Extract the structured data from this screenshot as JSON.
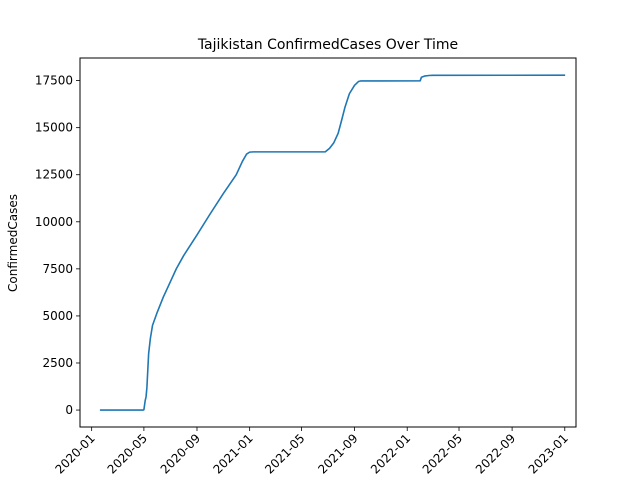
{
  "chart_data": {
    "type": "line",
    "title": "Tajikistan  ConfirmedCases Over Time",
    "xlabel": "",
    "ylabel": "ConfirmedCases",
    "x_tick_labels": [
      "2020-01",
      "2020-05",
      "2020-09",
      "2021-01",
      "2021-05",
      "2021-09",
      "2022-01",
      "2022-05",
      "2022-09",
      "2023-01"
    ],
    "y_ticks": [
      0,
      2500,
      5000,
      7500,
      10000,
      12500,
      15000,
      17500
    ],
    "y_tick_labels": [
      "0",
      "2500",
      "5000",
      "7500",
      "10000",
      "12500",
      "15000",
      "17500"
    ],
    "ylim": [
      -900,
      18700
    ],
    "xlim": [
      "2019-12-05",
      "2023-01-27"
    ],
    "grid": false,
    "line_color": "#1f77b4",
    "series": [
      {
        "points": [
          [
            "2020-01-22",
            0
          ],
          [
            "2020-04-29",
            0
          ],
          [
            "2020-05-01",
            15
          ],
          [
            "2020-05-04",
            500
          ],
          [
            "2020-05-06",
            700
          ],
          [
            "2020-05-08",
            1200
          ],
          [
            "2020-05-10",
            2100
          ],
          [
            "2020-05-12",
            3000
          ],
          [
            "2020-05-16",
            3800
          ],
          [
            "2020-05-21",
            4500
          ],
          [
            "2020-06-01",
            5200
          ],
          [
            "2020-06-15",
            6000
          ],
          [
            "2020-07-01",
            6800
          ],
          [
            "2020-07-15",
            7500
          ],
          [
            "2020-08-01",
            8200
          ],
          [
            "2020-08-15",
            8700
          ],
          [
            "2020-09-01",
            9300
          ],
          [
            "2020-10-01",
            10400
          ],
          [
            "2020-11-01",
            11500
          ],
          [
            "2020-12-01",
            12500
          ],
          [
            "2020-12-15",
            13200
          ],
          [
            "2020-12-25",
            13600
          ],
          [
            "2021-01-01",
            13700
          ],
          [
            "2021-01-10",
            13714
          ],
          [
            "2021-06-25",
            13714
          ],
          [
            "2021-07-05",
            13900
          ],
          [
            "2021-07-15",
            14200
          ],
          [
            "2021-07-25",
            14700
          ],
          [
            "2021-08-01",
            15300
          ],
          [
            "2021-08-10",
            16100
          ],
          [
            "2021-08-20",
            16800
          ],
          [
            "2021-09-01",
            17250
          ],
          [
            "2021-09-10",
            17450
          ],
          [
            "2021-09-15",
            17480
          ],
          [
            "2022-01-31",
            17488
          ],
          [
            "2022-02-03",
            17680
          ],
          [
            "2022-02-10",
            17740
          ],
          [
            "2022-02-20",
            17770
          ],
          [
            "2022-03-01",
            17780
          ],
          [
            "2022-12-31",
            17786
          ]
        ]
      }
    ]
  }
}
